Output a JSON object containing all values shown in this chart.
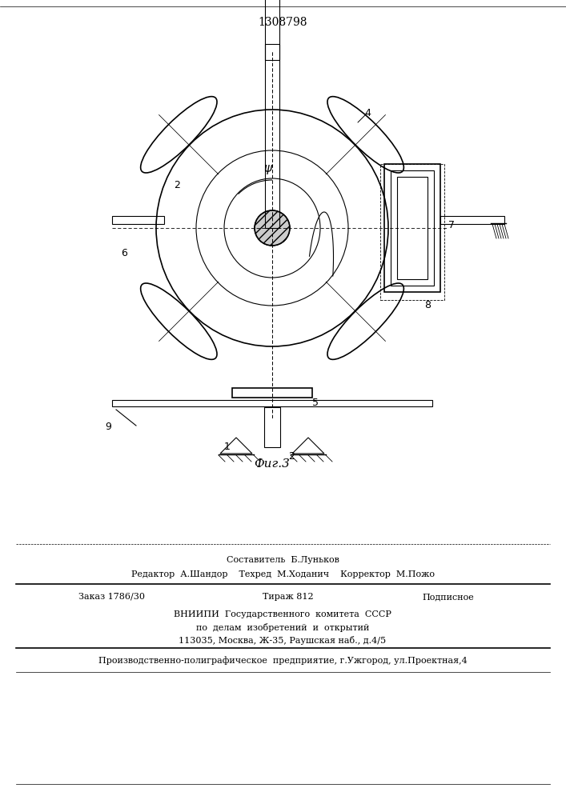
{
  "patent_number": "1308798",
  "figure_label": "Фиг.3",
  "bg_color": "#ffffff",
  "line_color": "#000000",
  "title_fontsize": 11,
  "label_fontsize": 9,
  "footer_lines": [
    "Составитель  Б.Луньков",
    "Редактор  А.Шандор    Техред  М.Ходанич    Корректор  М.Пожо",
    "Заказ 1786/30       Тираж 812           Подписное",
    "ВНИИПИ  Государственного  комитета  СССР",
    "по  делам  изобретений  и  открытий",
    "113035, Москва, Ж-35, Раушская наб., д.4/5",
    "Производственно-полиграфическое  предприятие, г.Ужгород, ул.Проектная,4"
  ]
}
